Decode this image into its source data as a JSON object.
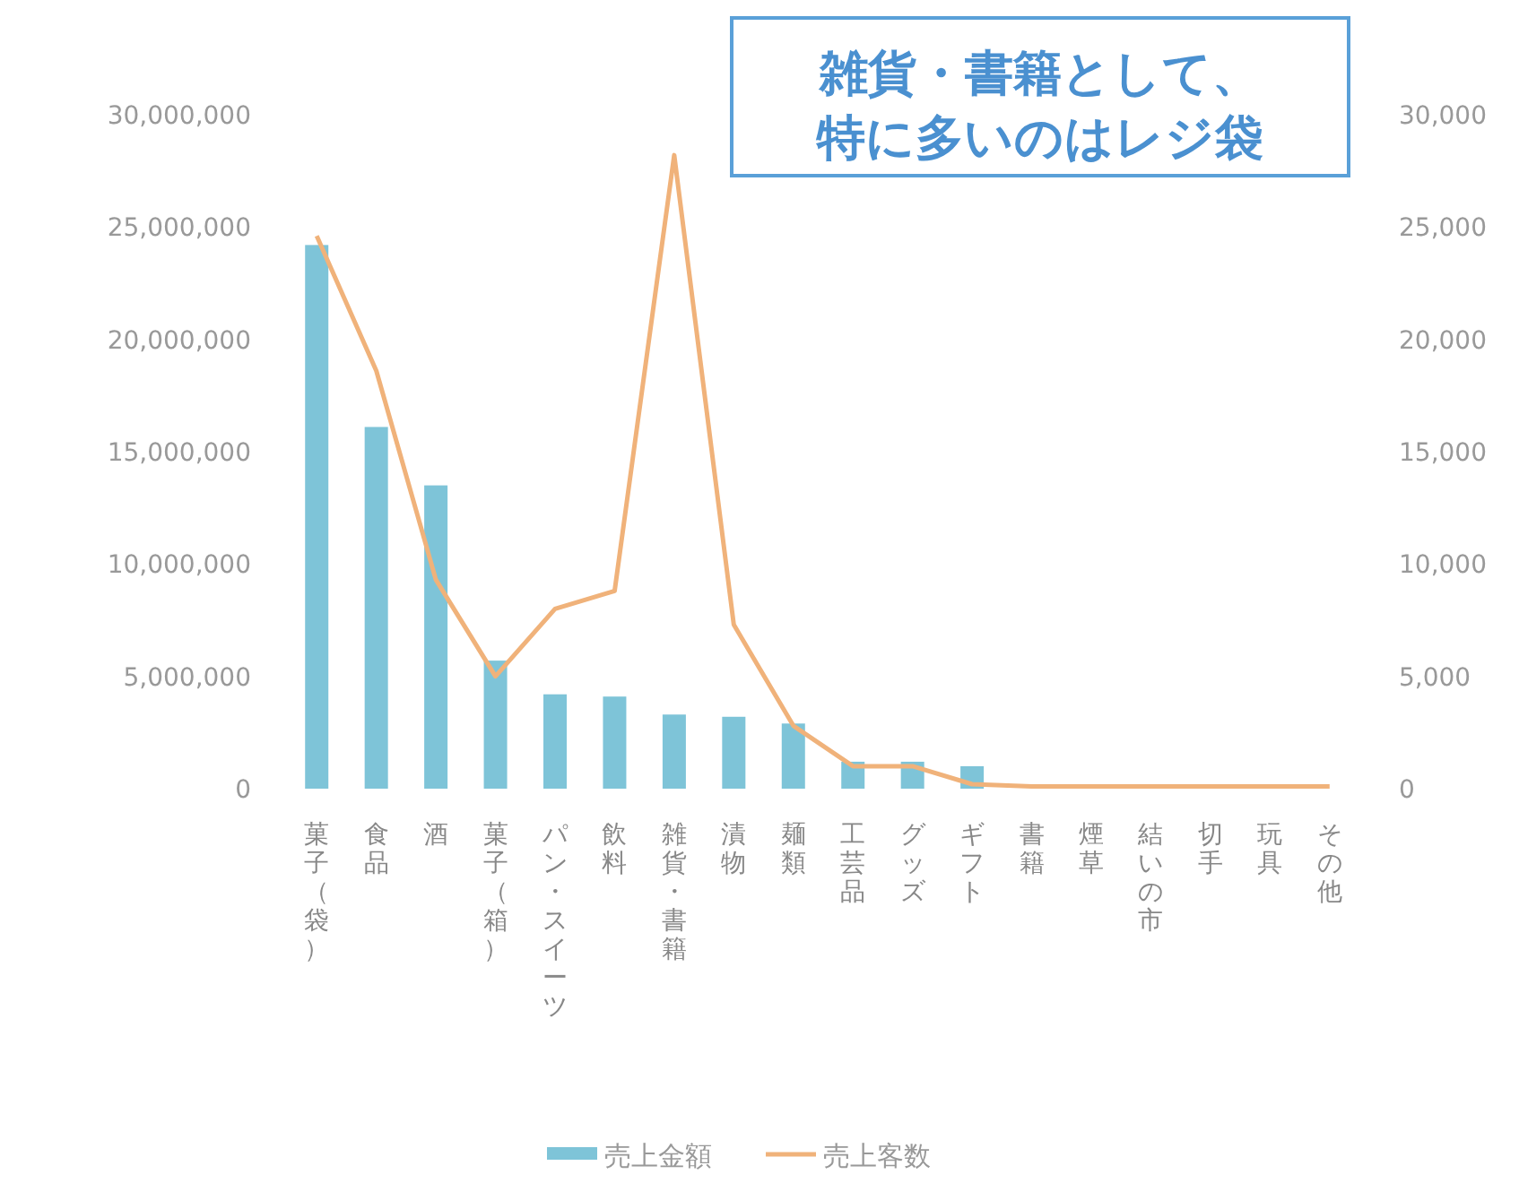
{
  "chart_data": {
    "type": "bar",
    "categories": [
      "菓子（袋）",
      "食品",
      "酒",
      "菓子（箱）",
      "パン・スイーツ",
      "飲料",
      "雑貨・書籍",
      "漬物",
      "麺類",
      "工芸品",
      "グッズ",
      "ギフト",
      "書籍",
      "煙草",
      "結いの市",
      "切手",
      "玩具",
      "その他"
    ],
    "series": [
      {
        "name": "売上金額",
        "color": "#7ec4d8",
        "values": [
          24200000,
          16100000,
          13500000,
          5700000,
          4200000,
          4100000,
          3300000,
          3200000,
          2900000,
          1200000,
          1200000,
          1000000,
          0,
          0,
          0,
          0,
          0,
          0
        ]
      },
      {
        "name": "売上客数",
        "type": "line",
        "axis": "y2",
        "color": "#f0b27a",
        "values": [
          24600,
          18600,
          9300,
          5000,
          8000,
          8800,
          28200,
          7300,
          2800,
          1000,
          1000,
          200,
          100,
          100,
          100,
          100,
          100,
          100
        ]
      }
    ],
    "ylim": [
      0,
      30000000
    ],
    "yticks": [
      {
        "value": 0,
        "label": "0"
      },
      {
        "value": 5000000,
        "label": "5,000,000"
      },
      {
        "value": 10000000,
        "label": "10,000,000"
      },
      {
        "value": 15000000,
        "label": "15,000,000"
      },
      {
        "value": 20000000,
        "label": "20,000,000"
      },
      {
        "value": 25000000,
        "label": "25,000,000"
      },
      {
        "value": 30000000,
        "label": "30,000,000"
      }
    ],
    "y2lim": [
      0,
      30000
    ],
    "y2ticks": [
      {
        "value": 0,
        "label": "0"
      },
      {
        "value": 5000,
        "label": "5,000"
      },
      {
        "value": 10000,
        "label": "10,000"
      },
      {
        "value": 15000,
        "label": "15,000"
      },
      {
        "value": 20000,
        "label": "20,000"
      },
      {
        "value": 25000,
        "label": "25,000"
      },
      {
        "value": 30000,
        "label": "30,000"
      }
    ],
    "legend": "bottom",
    "annotations": [
      "雑貨・書籍として、",
      "特に多いのはレジ袋"
    ]
  }
}
